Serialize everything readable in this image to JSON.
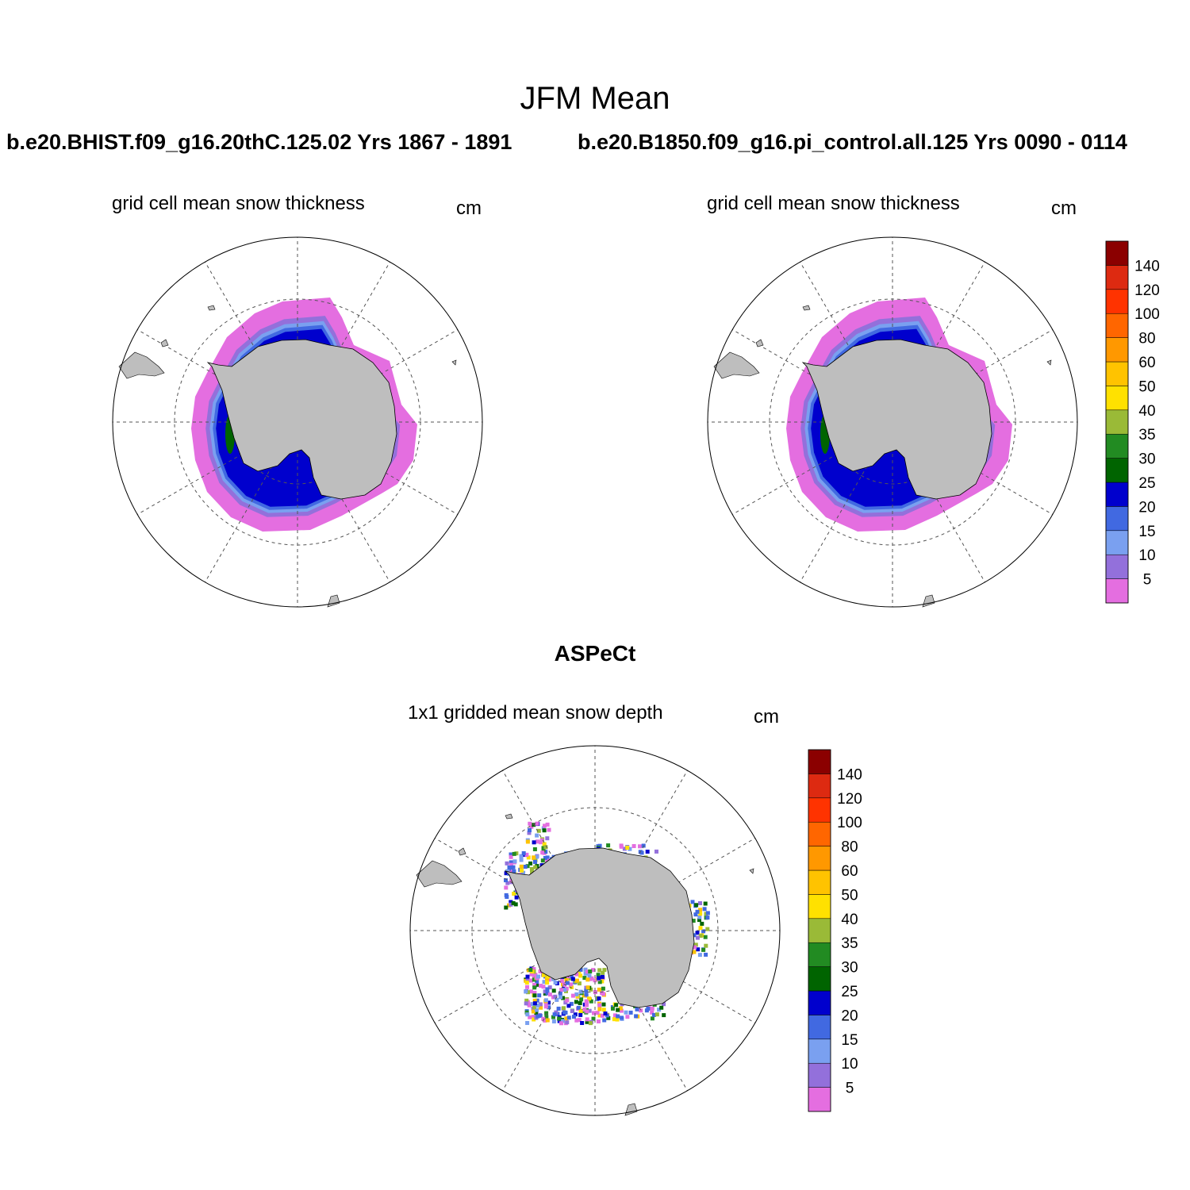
{
  "figure": {
    "main_title": "JFM Mean",
    "left_case_title": "b.e20.BHIST.f09_g16.20thC.125.02  Yrs 1867 - 1891",
    "right_case_title": "b.e20.B1850.f09_g16.pi_control.all.125  Yrs 0090 - 0114",
    "obs_title": "ASPeCt"
  },
  "panels": {
    "left": {
      "label": "grid cell mean snow thickness",
      "units": "cm"
    },
    "right": {
      "label": "grid cell mean snow thickness",
      "units": "cm"
    },
    "obs": {
      "label": "1x1 gridded mean snow depth",
      "units": "cm"
    }
  },
  "colorbar": {
    "labels": [
      "5",
      "10",
      "15",
      "20",
      "25",
      "30",
      "35",
      "40",
      "50",
      "60",
      "80",
      "100",
      "120",
      "140"
    ],
    "colors": [
      "#e46ee0",
      "#9370db",
      "#7aa0f0",
      "#4169e1",
      "#0000cd",
      "#006400",
      "#228b22",
      "#9aba37",
      "#ffe100",
      "#ffc300",
      "#ff9800",
      "#ff6600",
      "#ff3300",
      "#dd2a11",
      "#8b0000"
    ]
  },
  "map_colors": {
    "land": "#bebebe",
    "ocean": "#ffffff",
    "outer_ice": "#e46ee0",
    "band_2": "#9370db",
    "band_3": "#7aa0f0",
    "band_4": "#4169e1",
    "band_5": "#0000cd",
    "band_6": "#006400"
  }
}
